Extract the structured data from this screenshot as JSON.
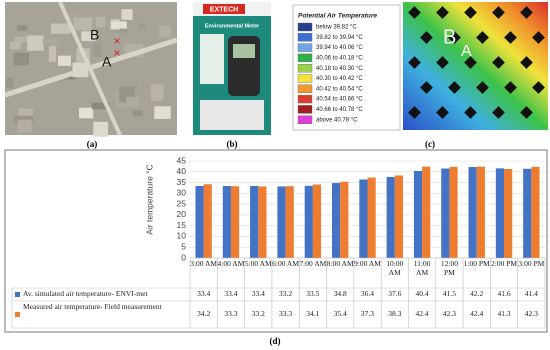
{
  "panels": {
    "a": {
      "caption": "(a)",
      "markers": [
        "B",
        "A"
      ]
    },
    "b": {
      "caption": "(b)",
      "brand": "EXTECH",
      "product": "Environmental Meter"
    },
    "c": {
      "caption": "(c)",
      "legend_title": "Potential Air Temperature",
      "legend": [
        {
          "label": "below 39.82 °C",
          "color": "#223e8e"
        },
        {
          "label": "39.82 to 39.94 °C",
          "color": "#3a6fd4"
        },
        {
          "label": "39.94 to 40.06 °C",
          "color": "#6fa6e8"
        },
        {
          "label": "40.06 to 40.18 °C",
          "color": "#2fb24c"
        },
        {
          "label": "40.18 to 40.30 °C",
          "color": "#9ad14a"
        },
        {
          "label": "40.30 to 40.42 °C",
          "color": "#f4e33b"
        },
        {
          "label": "40.42 to 40.54 °C",
          "color": "#f29a2e"
        },
        {
          "label": "40.54 to 40.66 °C",
          "color": "#d9402a"
        },
        {
          "label": "40.66 to 40.78 °C",
          "color": "#a51d1d"
        },
        {
          "label": "above 40.78 °C",
          "color": "#e03cd6"
        }
      ],
      "markers": [
        "B",
        "A"
      ]
    }
  },
  "chart_data": {
    "type": "bar",
    "caption": "(d)",
    "y_label": "Air temperature °C",
    "categories": [
      "3:00 AM",
      "4:00 AM",
      "5:00 AM",
      "6:00 AM",
      "7:00 AM",
      "8:00 AM",
      "9:00 AM",
      "10:00 AM",
      "11:00 AM",
      "12:00 PM",
      "1:00 PM",
      "2:00 PM",
      "3:00 PM"
    ],
    "series": [
      {
        "name": "Av. simulated air temperature- ENVI-met",
        "color": "#4472c4",
        "values": [
          33.4,
          33.4,
          33.4,
          33.2,
          33.5,
          34.8,
          36.4,
          37.6,
          40.4,
          41.5,
          42.2,
          41.6,
          41.4
        ]
      },
      {
        "name": "Measured air temperature-  Field measurement",
        "color": "#ed7d31",
        "values": [
          34.2,
          33.3,
          33.2,
          33.3,
          34.1,
          35.4,
          37.3,
          38.3,
          42.4,
          42.3,
          42.4,
          41.3,
          42.3
        ]
      }
    ],
    "ylim": [
      0,
      45
    ],
    "yticks": [
      0,
      5,
      10,
      15,
      20,
      25,
      30,
      35,
      40,
      45
    ],
    "grid": true
  }
}
